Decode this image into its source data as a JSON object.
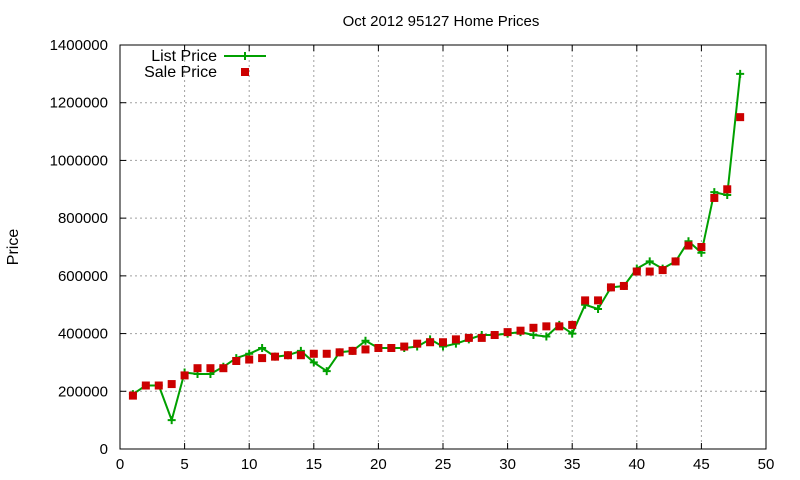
{
  "chart_data": {
    "type": "line",
    "title": "Oct 2012 95127 Home Prices",
    "xlabel": "",
    "ylabel": "Price",
    "xlim": [
      0,
      50
    ],
    "ylim": [
      0,
      1400000
    ],
    "xticks": [
      0,
      5,
      10,
      15,
      20,
      25,
      30,
      35,
      40,
      45,
      50
    ],
    "yticks": [
      0,
      200000,
      400000,
      600000,
      800000,
      1000000,
      1200000,
      1400000
    ],
    "grid": true,
    "legend_position": "top-left",
    "x": [
      1,
      2,
      3,
      4,
      5,
      6,
      7,
      8,
      9,
      10,
      11,
      12,
      13,
      14,
      15,
      16,
      17,
      18,
      19,
      20,
      21,
      22,
      23,
      24,
      25,
      26,
      27,
      28,
      29,
      30,
      31,
      32,
      33,
      34,
      35,
      36,
      37,
      38,
      39,
      40,
      41,
      42,
      43,
      44,
      45,
      46,
      47,
      48
    ],
    "series": [
      {
        "name": "List Price",
        "color": "#00a000",
        "style": "line-plus",
        "values": [
          190000,
          220000,
          220000,
          100000,
          265000,
          260000,
          260000,
          285000,
          315000,
          330000,
          350000,
          320000,
          325000,
          340000,
          300000,
          270000,
          335000,
          340000,
          375000,
          350000,
          350000,
          350000,
          355000,
          380000,
          355000,
          365000,
          380000,
          395000,
          395000,
          400000,
          405000,
          395000,
          390000,
          430000,
          400000,
          500000,
          485000,
          560000,
          565000,
          625000,
          650000,
          625000,
          650000,
          720000,
          680000,
          890000,
          880000,
          1300000
        ]
      },
      {
        "name": "Sale Price",
        "color": "#cc0000",
        "style": "square",
        "values": [
          185000,
          220000,
          220000,
          225000,
          255000,
          280000,
          280000,
          280000,
          305000,
          310000,
          315000,
          320000,
          325000,
          325000,
          330000,
          330000,
          335000,
          340000,
          345000,
          350000,
          350000,
          355000,
          365000,
          370000,
          370000,
          380000,
          385000,
          385000,
          395000,
          405000,
          410000,
          420000,
          425000,
          425000,
          430000,
          515000,
          515000,
          560000,
          565000,
          615000,
          615000,
          620000,
          650000,
          705000,
          700000,
          870000,
          900000,
          1150000
        ]
      }
    ]
  }
}
